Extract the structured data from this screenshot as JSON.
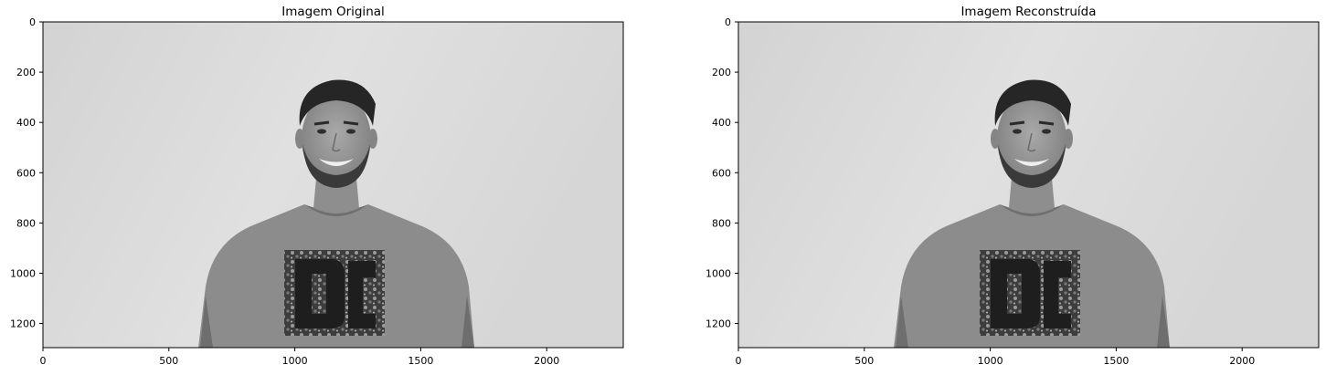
{
  "chart_data": [
    {
      "type": "image",
      "title": "Imagem Original",
      "xlim": [
        0,
        2304
      ],
      "ylim": [
        1296,
        0
      ],
      "xticks": [
        0,
        500,
        1000,
        1500,
        2000
      ],
      "yticks": [
        0,
        200,
        400,
        600,
        800,
        1000,
        1200
      ],
      "xlabel": "",
      "ylabel": "",
      "grid": false,
      "colormap": "gray"
    },
    {
      "type": "image",
      "title": "Imagem Reconstruída",
      "xlim": [
        0,
        2304
      ],
      "ylim": [
        1296,
        0
      ],
      "xticks": [
        0,
        500,
        1000,
        1500,
        2000
      ],
      "yticks": [
        0,
        200,
        400,
        600,
        800,
        1000,
        1200
      ],
      "xlabel": "",
      "ylabel": "",
      "grid": false,
      "colormap": "gray"
    }
  ]
}
